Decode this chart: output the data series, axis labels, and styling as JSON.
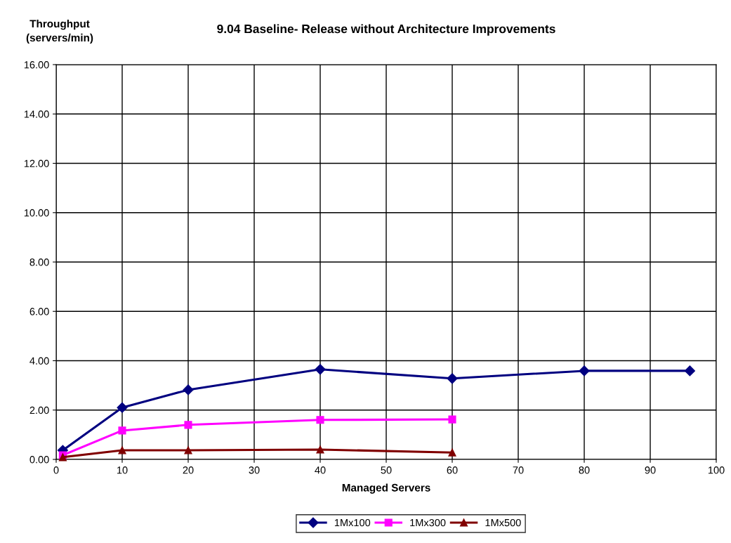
{
  "chart_data": {
    "type": "line",
    "title": "9.04 Baseline- Release without Architecture Improvements",
    "xlabel": "Managed Servers",
    "ylabel": "Throughput\n(servers/min)",
    "xlim": [
      0,
      100
    ],
    "xticks": [
      0,
      10,
      20,
      30,
      40,
      50,
      60,
      70,
      80,
      90,
      100
    ],
    "ylim": [
      0,
      16
    ],
    "yticks": [
      {
        "value": 0,
        "label": "0.00"
      },
      {
        "value": 2,
        "label": "2.00"
      },
      {
        "value": 4,
        "label": "4.00"
      },
      {
        "value": 6,
        "label": "6.00"
      },
      {
        "value": 8,
        "label": "8.00"
      },
      {
        "value": 10,
        "label": "10.00"
      },
      {
        "value": 12,
        "label": "12.00"
      },
      {
        "value": 14,
        "label": "14.00"
      },
      {
        "value": 16,
        "label": "16.00"
      }
    ],
    "grid": true,
    "legend": "bottom",
    "line_style": "solid",
    "series": [
      {
        "name": "1Mx100",
        "color": "#000080",
        "marker": "diamond",
        "x": [
          1,
          10,
          20,
          40,
          60,
          80,
          96
        ],
        "values": [
          0.37,
          2.1,
          2.82,
          3.65,
          3.28,
          3.59,
          3.59
        ]
      },
      {
        "name": "1Mx300",
        "color": "#ff00ff",
        "marker": "square",
        "x": [
          1,
          10,
          20,
          40,
          60
        ],
        "values": [
          0.17,
          1.17,
          1.4,
          1.6,
          1.62
        ]
      },
      {
        "name": "1Mx500",
        "color": "#800000",
        "marker": "triangle",
        "x": [
          1,
          10,
          20,
          40,
          60
        ],
        "values": [
          0.09,
          0.37,
          0.37,
          0.4,
          0.28
        ]
      }
    ]
  }
}
